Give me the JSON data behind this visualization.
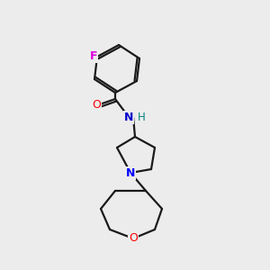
{
  "background_color": "#ececec",
  "bond_color": "#1a1a1a",
  "atom_colors": {
    "O": "#ff0000",
    "N": "#0000ff",
    "N_amide": "#0000cc",
    "F": "#dd00dd",
    "H": "#008080",
    "C": "#1a1a1a"
  },
  "figsize": [
    3.0,
    3.0
  ],
  "dpi": 100
}
